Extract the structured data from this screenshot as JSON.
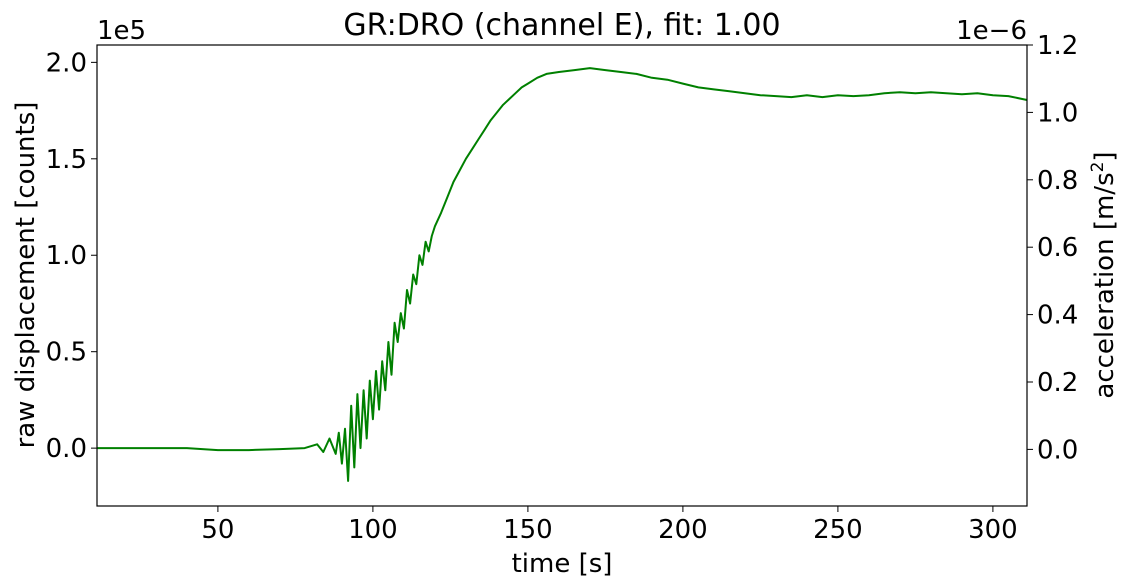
{
  "chart_data": {
    "type": "line",
    "title": "GR:DRO  (channel E), fit: 1.00",
    "xlabel": "time [s]",
    "ylabel_left": "raw displacement [counts]",
    "ylabel_right_main": "acceleration [m/s",
    "ylabel_right_sup": "2",
    "ylabel_right_end": "]",
    "left_offset_text": "1e5",
    "right_offset_text": "1e−6",
    "xlim": [
      11,
      311
    ],
    "ylim_left": [
      -0.3,
      2.09
    ],
    "ylim_right": [
      -0.168,
      1.2
    ],
    "x_ticks": [
      50,
      100,
      150,
      200,
      250,
      300
    ],
    "x_tick_labels": [
      "50",
      "100",
      "150",
      "200",
      "250",
      "300"
    ],
    "y_left_ticks": [
      0.0,
      0.5,
      1.0,
      1.5,
      2.0
    ],
    "y_left_tick_labels": [
      "0.0",
      "0.5",
      "1.0",
      "1.5",
      "2.0"
    ],
    "y_right_ticks": [
      0.0,
      0.2,
      0.4,
      0.6,
      0.8,
      1.0,
      1.2
    ],
    "y_right_tick_labels": [
      "0.0",
      "0.2",
      "0.4",
      "0.6",
      "0.8",
      "1.0",
      "1.2"
    ],
    "grid": false,
    "series": [
      {
        "color": "#008000",
        "x": [
          11,
          20,
          30,
          40,
          50,
          60,
          70,
          78,
          82,
          84,
          86,
          88,
          89,
          90,
          91,
          92,
          93,
          94,
          95,
          96,
          97,
          98,
          99,
          100,
          101,
          102,
          103,
          104,
          105,
          106,
          107,
          108,
          109,
          110,
          111,
          112,
          113,
          114,
          115,
          116,
          117,
          118,
          119,
          120,
          122,
          124,
          126,
          128,
          130,
          132,
          134,
          136,
          138,
          140,
          142,
          144,
          146,
          148,
          150,
          153,
          156,
          160,
          165,
          170,
          175,
          180,
          185,
          190,
          195,
          200,
          205,
          210,
          215,
          220,
          225,
          230,
          235,
          240,
          245,
          250,
          255,
          260,
          265,
          270,
          275,
          280,
          285,
          290,
          295,
          300,
          305,
          311
        ],
        "y": [
          0.0,
          0.0,
          0.0,
          0.0,
          -0.01,
          -0.01,
          -0.005,
          0.0,
          0.02,
          -0.02,
          0.05,
          -0.03,
          0.08,
          -0.08,
          0.1,
          -0.17,
          0.22,
          -0.1,
          0.28,
          0.0,
          0.3,
          0.05,
          0.35,
          0.15,
          0.4,
          0.2,
          0.45,
          0.3,
          0.55,
          0.38,
          0.65,
          0.55,
          0.7,
          0.62,
          0.82,
          0.75,
          0.9,
          0.85,
          1.0,
          0.95,
          1.07,
          1.02,
          1.1,
          1.15,
          1.22,
          1.3,
          1.38,
          1.44,
          1.5,
          1.55,
          1.6,
          1.65,
          1.7,
          1.74,
          1.78,
          1.81,
          1.84,
          1.87,
          1.89,
          1.92,
          1.94,
          1.95,
          1.96,
          1.97,
          1.96,
          1.95,
          1.94,
          1.92,
          1.91,
          1.89,
          1.87,
          1.86,
          1.85,
          1.84,
          1.83,
          1.825,
          1.82,
          1.83,
          1.82,
          1.83,
          1.825,
          1.83,
          1.84,
          1.845,
          1.84,
          1.845,
          1.84,
          1.835,
          1.84,
          1.83,
          1.825,
          1.805
        ]
      }
    ]
  }
}
